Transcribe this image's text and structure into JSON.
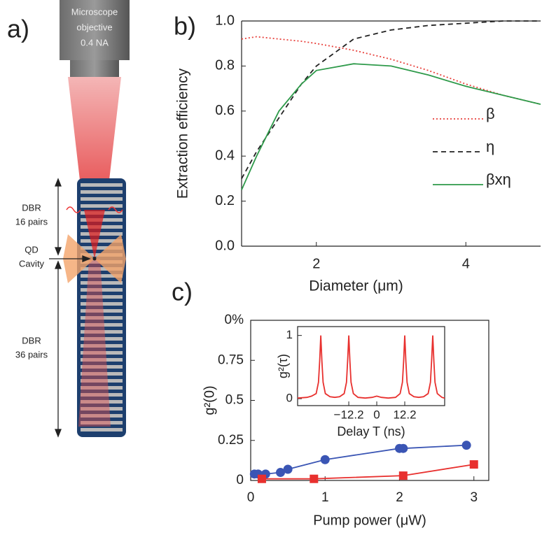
{
  "diagram": {
    "panel_label": "a)",
    "objective": [
      "Microscope",
      "objective",
      "0.4 NA"
    ],
    "top_dbr": [
      "DBR",
      "16 pairs"
    ],
    "cavity": [
      "QD",
      "Cavity"
    ],
    "bottom_dbr": [
      "DBR",
      "36 pairs"
    ]
  },
  "chart_data": [
    {
      "type": "line",
      "panel_label": "b)",
      "x_label": "Diameter (μm)",
      "y_label": "Extraction efficiency",
      "x": [
        1,
        1.2,
        1.5,
        1.8,
        2,
        2.5,
        3,
        3.5,
        4,
        4.5,
        5
      ],
      "series": [
        {
          "name": "β",
          "color": "#e8413c",
          "dash": "dotted",
          "values": [
            0.92,
            0.93,
            0.92,
            0.91,
            0.9,
            0.87,
            0.83,
            0.78,
            0.72,
            0.67,
            0.63
          ]
        },
        {
          "name": "η",
          "color": "#222222",
          "dash": "dashed",
          "values": [
            0.3,
            0.42,
            0.57,
            0.72,
            0.8,
            0.92,
            0.96,
            0.98,
            0.99,
            1.0,
            1.0
          ]
        },
        {
          "name": "βxη",
          "color": "#2e9a4a",
          "dash": "solid",
          "values": [
            0.25,
            0.4,
            0.6,
            0.72,
            0.78,
            0.81,
            0.8,
            0.76,
            0.71,
            0.67,
            0.63
          ]
        }
      ],
      "xlim": [
        1,
        5
      ],
      "xticks": [
        2,
        4
      ],
      "ylim": [
        0,
        1
      ],
      "yticks": [
        {
          "value": 0,
          "label": "0.0"
        },
        0.2,
        0.4,
        0.6,
        0.8,
        {
          "value": 1,
          "label": "1.0"
        }
      ],
      "legend": "right"
    },
    {
      "type": "line",
      "panel_label": "c)",
      "x_label": "Pump power (μW)",
      "y_label": "g²(0)",
      "top_text": "0%",
      "series": [
        {
          "color": "#3a55b4",
          "marker": "circle",
          "x": [
            0.05,
            0.1,
            0.2,
            0.4,
            0.5,
            1.0,
            2.0,
            2.05,
            2.9
          ],
          "values": [
            0.04,
            0.04,
            0.04,
            0.05,
            0.07,
            0.13,
            0.2,
            0.2,
            0.22
          ]
        },
        {
          "color": "#e8302e",
          "marker": "square",
          "x": [
            0.15,
            0.85,
            2.05,
            3.0
          ],
          "values": [
            0.01,
            0.01,
            0.03,
            0.1
          ]
        }
      ],
      "xlim": [
        0,
        3.2
      ],
      "xticks": [
        0,
        1,
        2,
        3
      ],
      "ylim": [
        0,
        1
      ],
      "yticks": [
        0,
        0.25,
        0.5,
        0.75
      ]
    },
    {
      "type": "line",
      "x_label": "Delay T (ns)",
      "y_label": "g²(τ)",
      "x": [
        -34.5,
        -30.4,
        -28.4,
        -26.4,
        -25.4,
        -24.9,
        -24.4,
        -23.9,
        -23.4,
        -22.4,
        -20.4,
        -18.3,
        -16.2,
        -14.2,
        -13.2,
        -12.7,
        -12.2,
        -11.7,
        -11.2,
        -10.2,
        -8.2,
        -5,
        -2,
        0,
        2,
        5,
        8.2,
        10.2,
        11.2,
        11.7,
        12.2,
        12.7,
        13.2,
        14.2,
        16.2,
        18.3,
        20.4,
        22.4,
        23.4,
        23.9,
        24.4,
        24.9,
        25.4,
        26.4,
        28.4,
        29.6
      ],
      "series": [
        {
          "color": "#e8302e",
          "dash": "solid",
          "values": [
            0.01,
            0.02,
            0.04,
            0.08,
            0.26,
            0.59,
            1,
            0.59,
            0.26,
            0.08,
            0.03,
            0.02,
            0.03,
            0.08,
            0.26,
            0.59,
            1,
            0.59,
            0.26,
            0.08,
            0.02,
            0.01,
            0.02,
            0.04,
            0.02,
            0.01,
            0.02,
            0.08,
            0.26,
            0.59,
            1,
            0.59,
            0.26,
            0.08,
            0.03,
            0.02,
            0.03,
            0.08,
            0.26,
            0.59,
            1,
            0.59,
            0.26,
            0.08,
            0.02,
            0.01
          ]
        }
      ],
      "xlim": [
        -34.5,
        29.6
      ],
      "xticks": [
        {
          "value": -12.2,
          "label": "−12.2"
        },
        0,
        12.2
      ],
      "ylim": [
        -0.11,
        1.14
      ],
      "yticks": [
        0,
        1
      ]
    }
  ]
}
